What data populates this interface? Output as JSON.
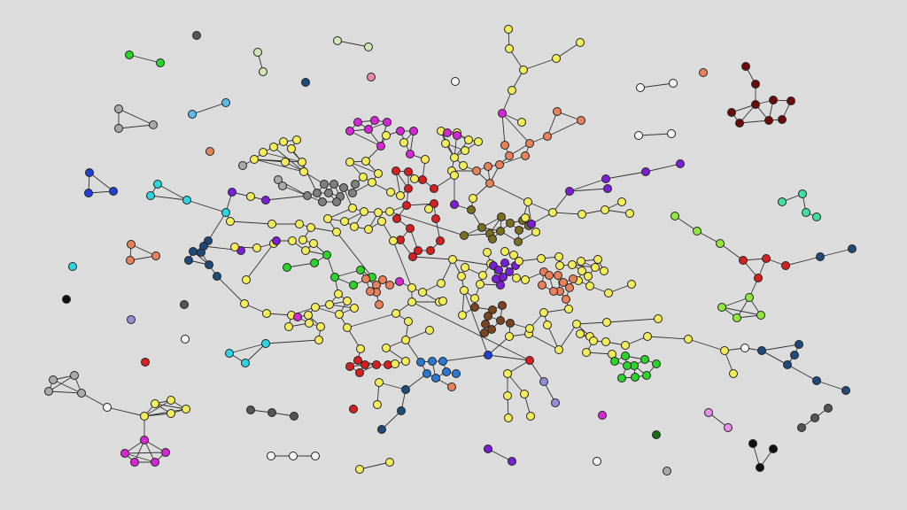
{
  "graph": {
    "background": "#dcdcdc",
    "edge_color": "#333333",
    "node_stroke": "#222222",
    "palette": {
      "Y": "#f5ec5a",
      "R": "#d61f1f",
      "Mg": "#d626d6",
      "Gr": "#808080",
      "lg": "#aaaaaa",
      "Or": "#e8825a",
      "Ol": "#7a6e20",
      "Br": "#7a4520",
      "Pu": "#7b1fd6",
      "Nv": "#1f4a7a",
      "Bl": "#1f3fd6",
      "Cy": "#2ad4e0",
      "Lb": "#5abbe8",
      "Gn": "#2ad42a",
      "Dg": "#1a6e1a",
      "Lgn": "#8fe83a",
      "Dr": "#6e0a0a",
      "Bk": "#111111",
      "Wh": "#f5f5f5",
      "Pk": "#e88aa0",
      "Vi": "#e890e8",
      "Tq": "#40e0a0",
      "Pg": "#cfe8b5",
      "Sb": "#2a78d4",
      "Lv": "#9090d8",
      "Dgr": "#555555"
    }
  }
}
